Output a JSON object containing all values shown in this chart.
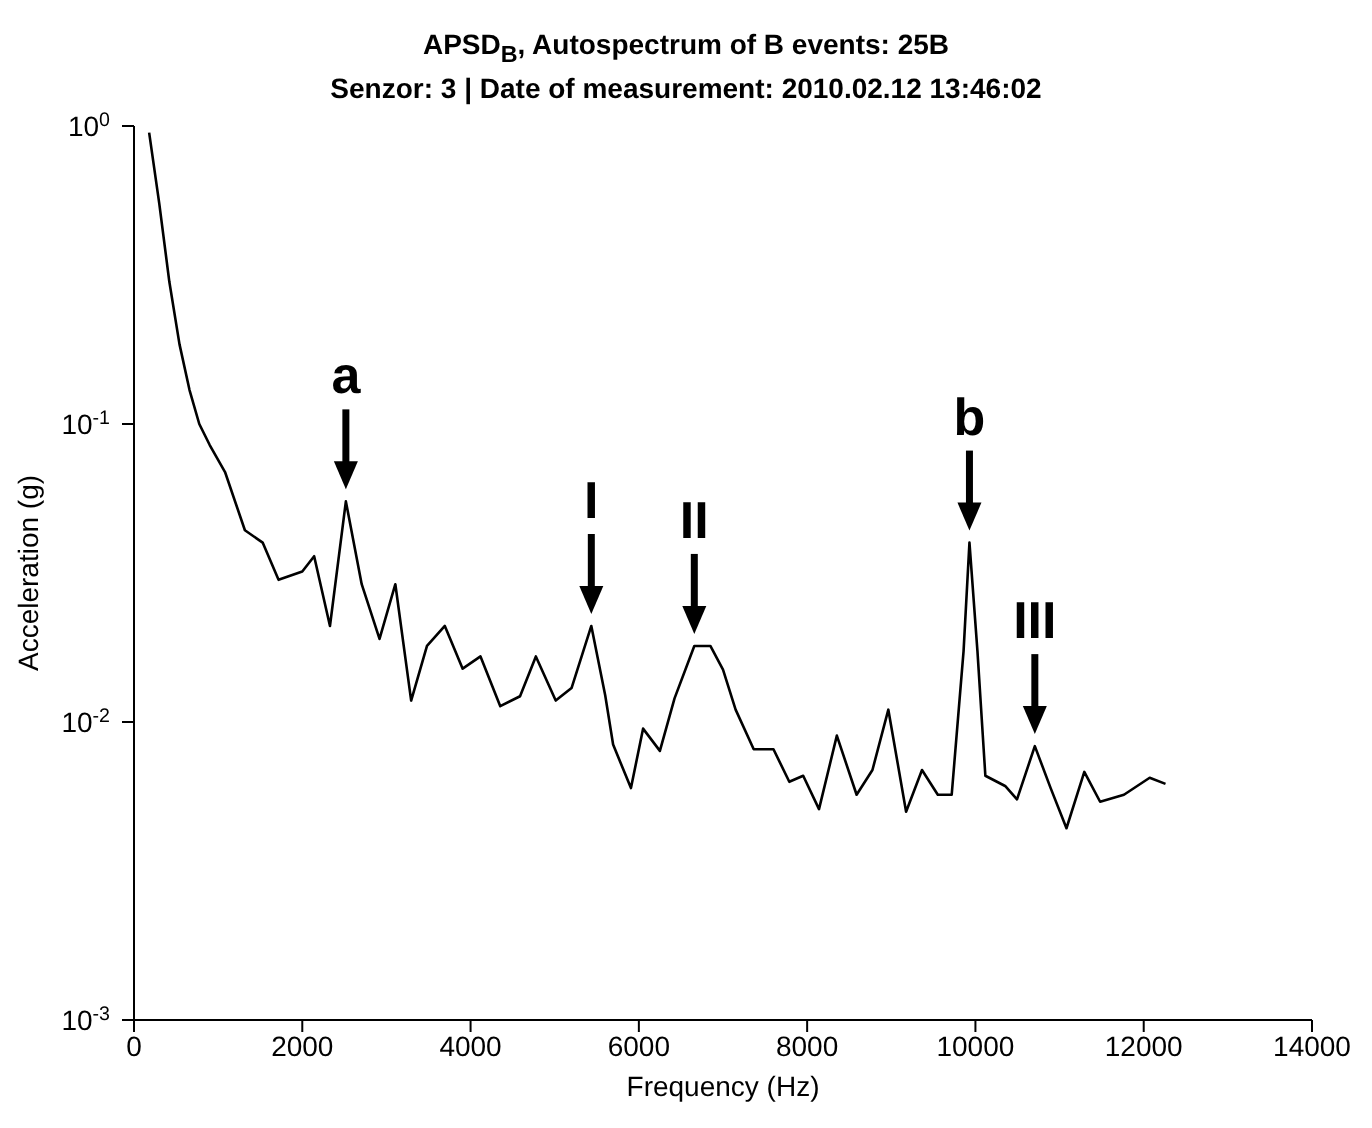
{
  "chart_data": {
    "type": "line",
    "title": "APSD$_{B}$, Autospectrum of B events: 25B",
    "subtitle": "Senzor: 3 | Date of measurement: 2010.02.12 13:46:02",
    "xlabel": "Frequency (Hz)",
    "ylabel": "Acceleration (g)",
    "x": [
      180,
      300,
      420,
      541,
      660,
      776,
      900,
      1082,
      1318,
      1529,
      1718,
      2000,
      2141,
      2329,
      2518,
      2706,
      2918,
      3106,
      3294,
      3482,
      3694,
      3906,
      4118,
      4353,
      4588,
      4776,
      5012,
      5200,
      5435,
      5600,
      5694,
      5906,
      6050,
      6250,
      6424,
      6659,
      6850,
      7000,
      7150,
      7365,
      7600,
      7788,
      7953,
      8141,
      8353,
      8588,
      8776,
      8965,
      9176,
      9365,
      9553,
      9718,
      9859,
      9929,
      10024,
      10118,
      10353,
      10494,
      10706,
      10894,
      11082,
      11294,
      11482,
      11765,
      12071,
      12259
    ],
    "series": [
      {
        "color": "#000000",
        "values": [
          0.95,
          0.55,
          0.3,
          0.185,
          0.13,
          0.1,
          0.085,
          0.069,
          0.044,
          0.04,
          0.03,
          0.032,
          0.036,
          0.021,
          0.055,
          0.029,
          0.019,
          0.029,
          0.0118,
          0.018,
          0.021,
          0.0151,
          0.0166,
          0.0113,
          0.0122,
          0.0166,
          0.0118,
          0.013,
          0.021,
          0.0123,
          0.0084,
          0.006,
          0.0095,
          0.008,
          0.012,
          0.018,
          0.018,
          0.015,
          0.011,
          0.0081,
          0.0081,
          0.0063,
          0.0066,
          0.0051,
          0.009,
          0.0057,
          0.0069,
          0.011,
          0.005,
          0.0069,
          0.0057,
          0.0057,
          0.0173,
          0.04,
          0.0173,
          0.0066,
          0.0061,
          0.0055,
          0.0083,
          0.006,
          0.0044,
          0.0068,
          0.0054,
          0.0057,
          0.0065,
          0.0062
        ]
      }
    ],
    "xlim": [
      0,
      14000
    ],
    "xticks": [
      0,
      2000,
      4000,
      6000,
      8000,
      10000,
      12000,
      14000
    ],
    "log": "y",
    "ylim": [
      0.001,
      1
    ],
    "yticks": [
      {
        "value": 0.001,
        "label": "10$^{-3}$"
      },
      {
        "value": 0.01,
        "label": "10$^{-2}$"
      },
      {
        "value": 0.1,
        "label": "10$^{-1}$"
      },
      {
        "value": 1,
        "label": "10$^{0}$"
      }
    ],
    "grid": false,
    "legend": false,
    "marker": "none",
    "line_style": "solid",
    "annotations": [
      {
        "text": "a",
        "x": 2518,
        "y": 0.055
      },
      {
        "text": "I",
        "x": 5435,
        "y": 0.021
      },
      {
        "text": "II",
        "x": 6659,
        "y": 0.018
      },
      {
        "text": "b",
        "x": 9929,
        "y": 0.04
      },
      {
        "text": "III",
        "x": 10706,
        "y": 0.0083
      }
    ]
  }
}
